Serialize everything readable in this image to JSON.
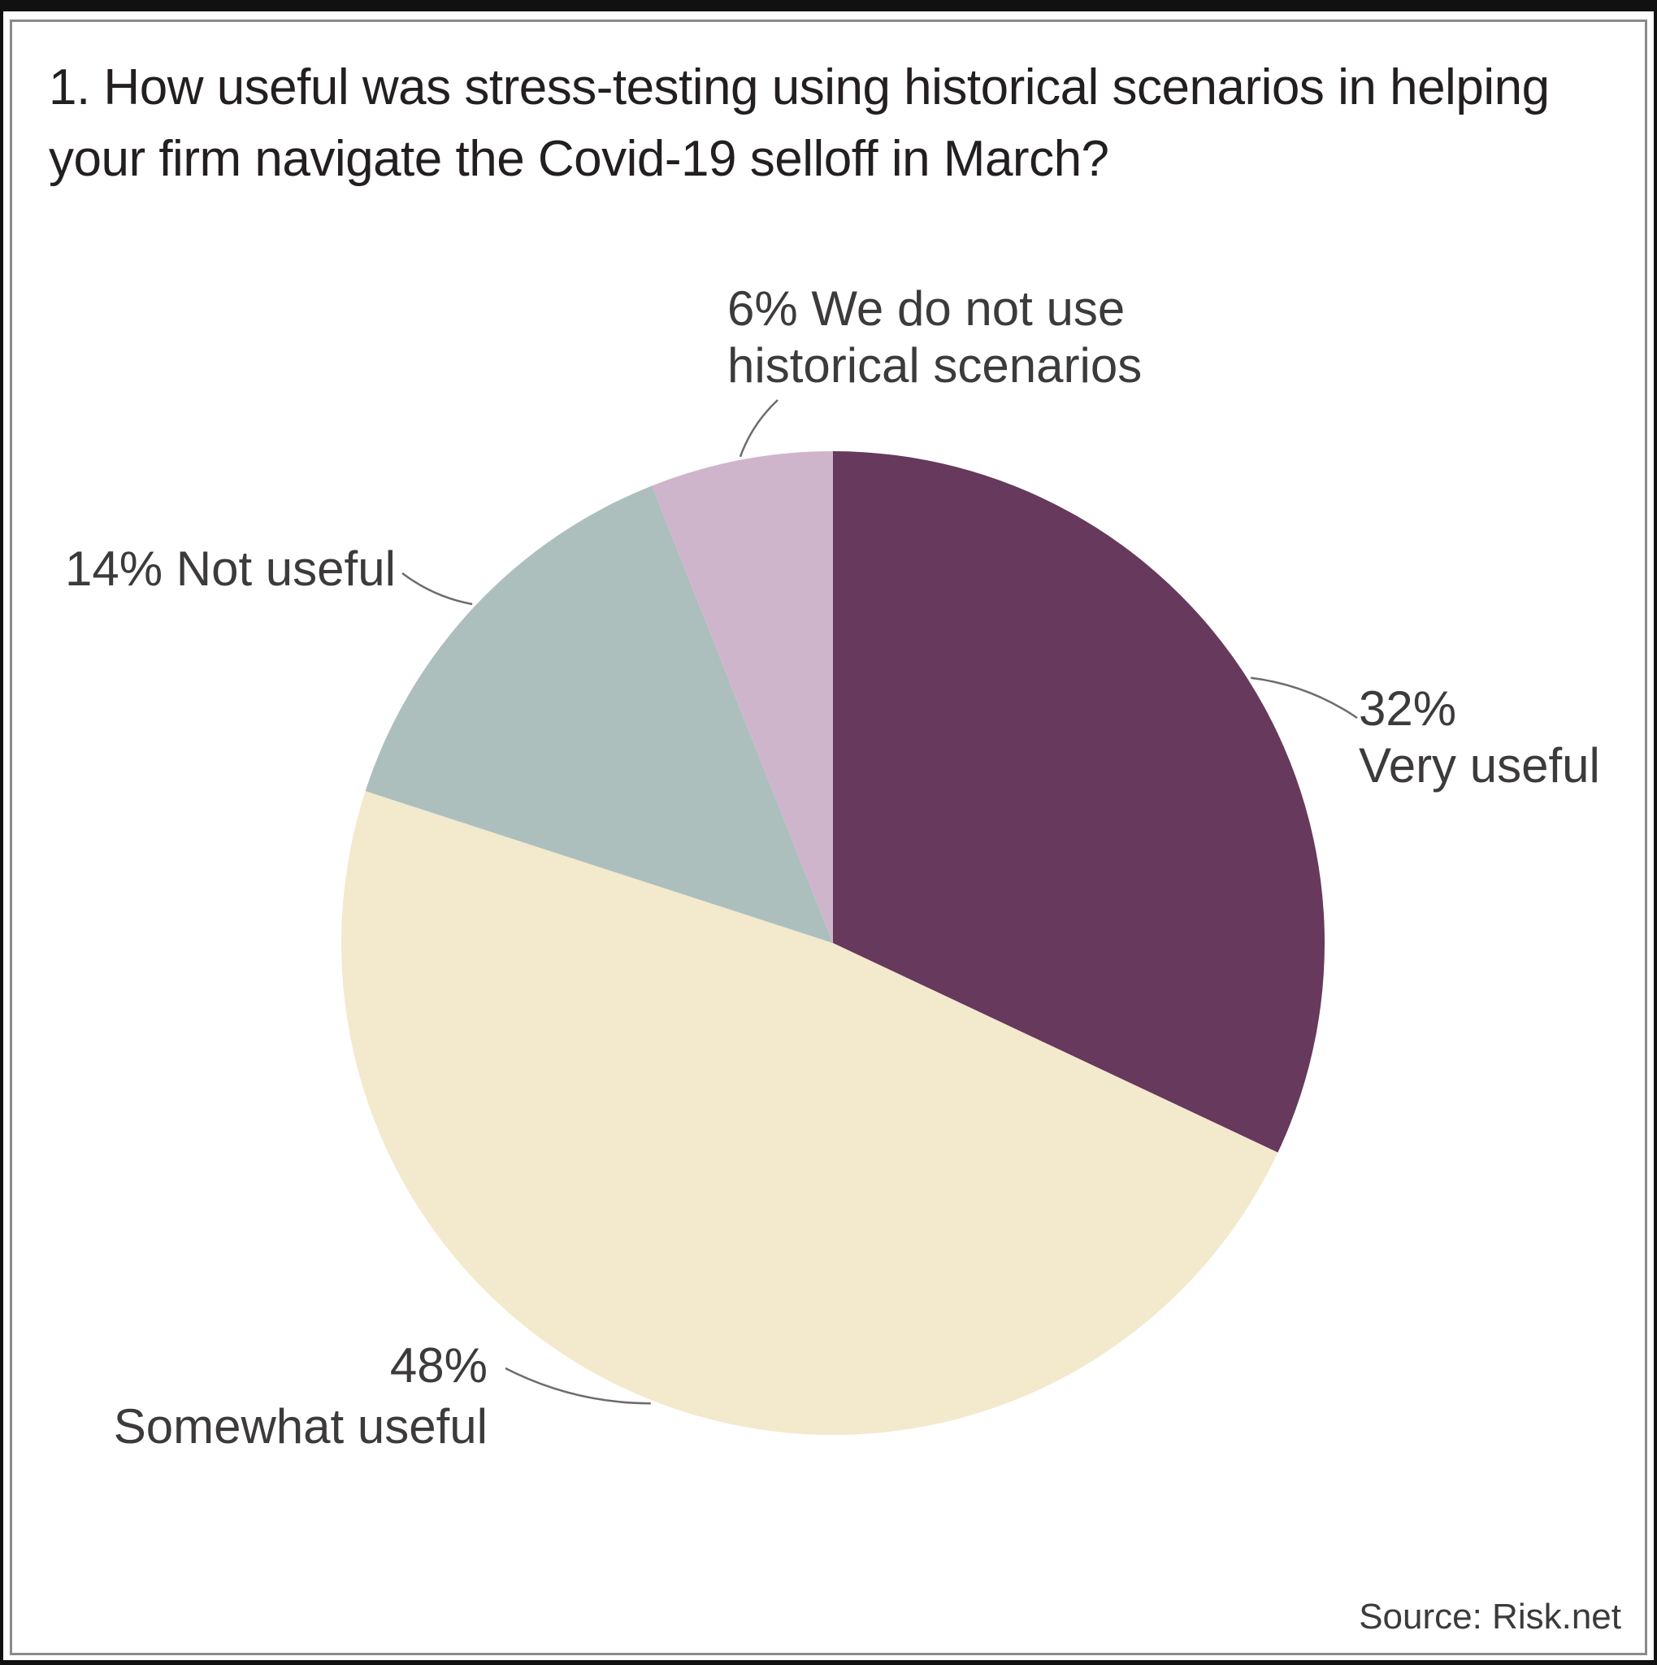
{
  "chart_data": {
    "type": "pie",
    "title": "1. How useful was stress-testing using historical scenarios in helping your firm navigate the Covid-19 selloff in March?",
    "title_lines": [
      "1. How useful was stress-testing using historical scenarios in helping",
      "your firm navigate the Covid-19 selloff in March?"
    ],
    "slices": [
      {
        "label": "Very useful",
        "value": 32,
        "value_label": "32%",
        "color": "#67395c",
        "label_lines": [
          "32%",
          "Very useful"
        ]
      },
      {
        "label": "Somewhat useful",
        "value": 48,
        "value_label": "48%",
        "color": "#f3e9cd",
        "label_lines": [
          "48%",
          "Somewhat useful"
        ]
      },
      {
        "label": "Not useful",
        "value": 14,
        "value_label": "14%",
        "color": "#adbfbd",
        "label_lines": [
          "14% Not useful"
        ]
      },
      {
        "label": "We do not use historical scenarios",
        "value": 6,
        "value_label": "6%",
        "color": "#cfb5cb",
        "label_lines": [
          "6% We do not use",
          "historical scenarios"
        ]
      }
    ],
    "start_angle": "12 o'clock",
    "direction": "clockwise",
    "legend": "none",
    "source": "Source: Risk.net"
  }
}
